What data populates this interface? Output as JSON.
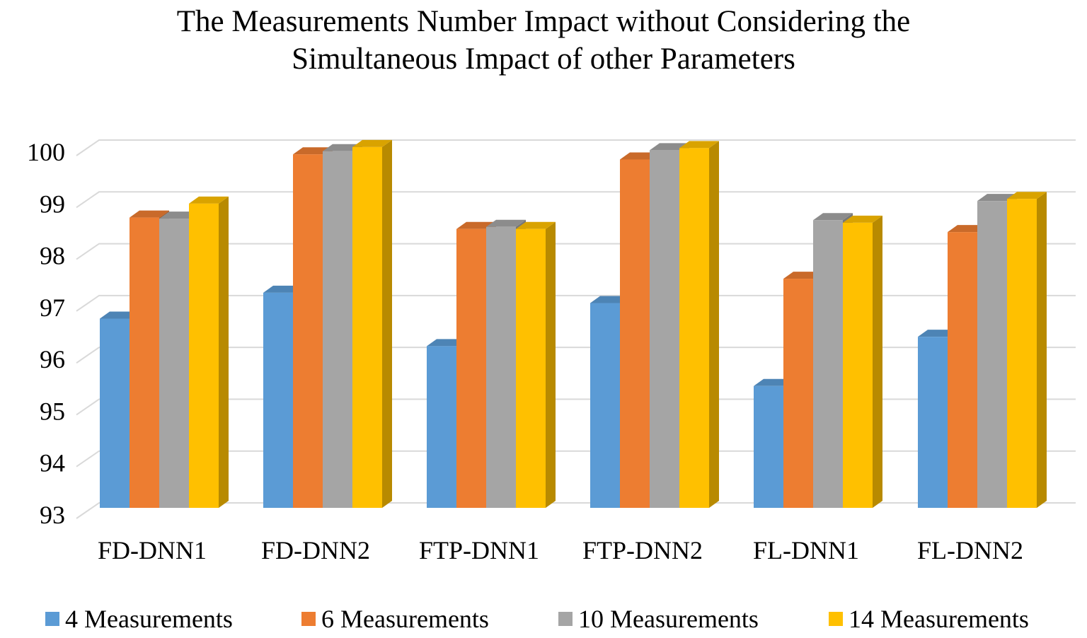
{
  "chart_data": {
    "type": "bar",
    "title_lines": [
      "The Measurements Number Impact without Considering the",
      "Simultaneous Impact of other Parameters"
    ],
    "categories": [
      "FD-DNN1",
      "FD-DNN2",
      "FTP-DNN1",
      "FTP-DNN2",
      "FL-DNN1",
      "FL-DNN2"
    ],
    "series": [
      {
        "name": "4 Measurements",
        "color": "#5B9BD5",
        "values": [
          96.65,
          97.15,
          96.12,
          96.95,
          95.35,
          96.3
        ]
      },
      {
        "name": "6 Measurements",
        "color": "#ED7D31",
        "values": [
          98.6,
          99.82,
          98.38,
          99.72,
          97.42,
          98.32
        ]
      },
      {
        "name": "10 Measurements",
        "color": "#A5A5A5",
        "values": [
          98.58,
          99.88,
          98.42,
          99.9,
          98.55,
          98.92
        ]
      },
      {
        "name": "14 Measurements",
        "color": "#FFC000",
        "values": [
          98.87,
          99.96,
          98.38,
          99.94,
          98.5,
          98.96
        ]
      }
    ],
    "ylim": [
      93,
      100
    ],
    "yticks": [
      93,
      94,
      95,
      96,
      97,
      98,
      99,
      100
    ],
    "grid": true,
    "legend_position": "bottom",
    "xlabel": "",
    "ylabel": ""
  }
}
